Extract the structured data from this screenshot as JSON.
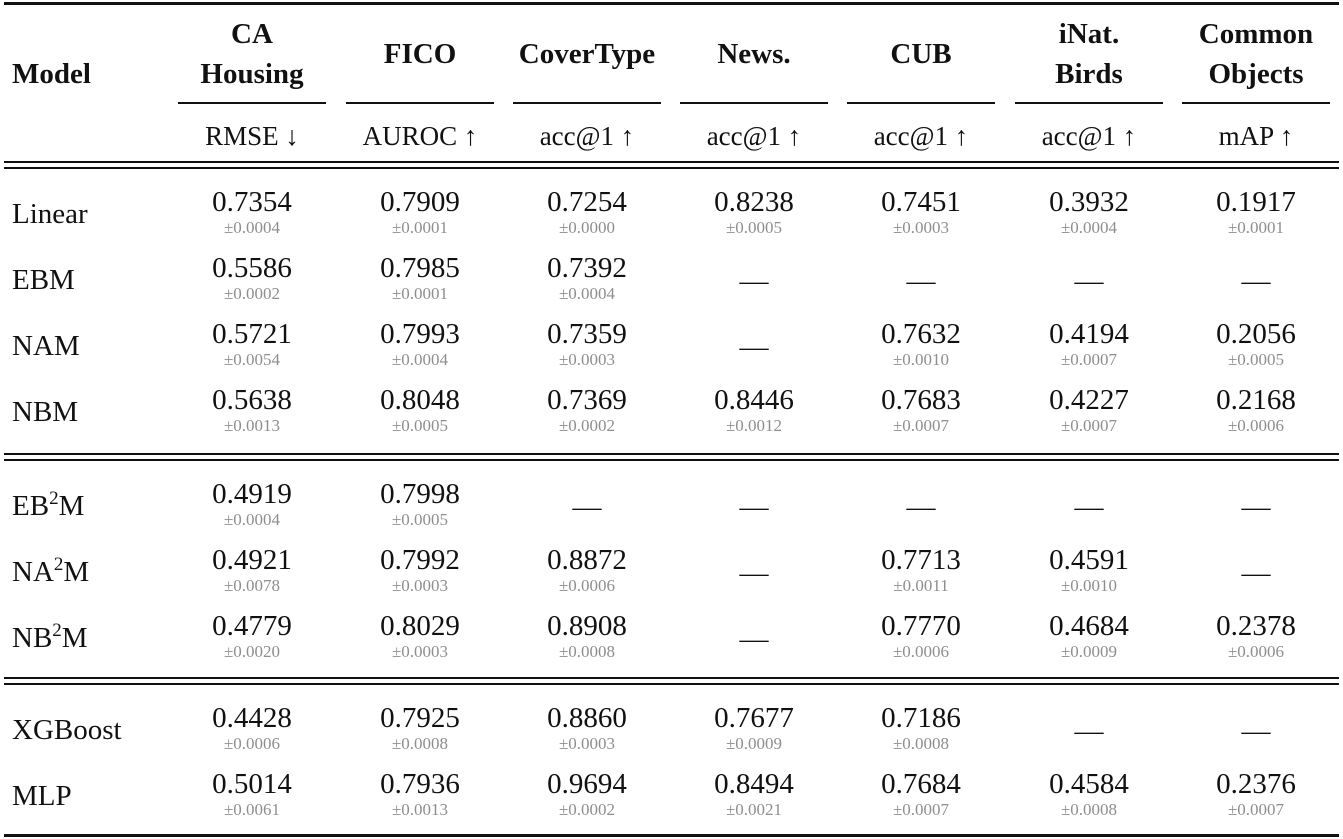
{
  "table": {
    "model_header": "Model",
    "columns": [
      {
        "name_lines": [
          "CA",
          "Housing"
        ],
        "metric": "RMSE ↓"
      },
      {
        "name_lines": [
          "FICO"
        ],
        "metric": "AUROC ↑"
      },
      {
        "name_lines": [
          "CoverType"
        ],
        "metric": "acc@1 ↑"
      },
      {
        "name_lines": [
          "News."
        ],
        "metric": "acc@1 ↑"
      },
      {
        "name_lines": [
          "CUB"
        ],
        "metric": "acc@1 ↑"
      },
      {
        "name_lines": [
          "iNat.",
          "Birds"
        ],
        "metric": "acc@1 ↑"
      },
      {
        "name_lines": [
          "Common",
          "Objects"
        ],
        "metric": "mAP ↑"
      }
    ],
    "groups": [
      {
        "rows": [
          {
            "label": "Linear",
            "cells": [
              {
                "v": "0.7354",
                "s": "±0.0004"
              },
              {
                "v": "0.7909",
                "s": "±0.0001"
              },
              {
                "v": "0.7254",
                "s": "±0.0000"
              },
              {
                "v": "0.8238",
                "s": "±0.0005"
              },
              {
                "v": "0.7451",
                "s": "±0.0003"
              },
              {
                "v": "0.3932",
                "s": "±0.0004"
              },
              {
                "v": "0.1917",
                "s": "±0.0001"
              }
            ]
          },
          {
            "label": "EBM",
            "cells": [
              {
                "v": "0.5586",
                "s": "±0.0002"
              },
              {
                "v": "0.7985",
                "s": "±0.0001"
              },
              {
                "v": "0.7392",
                "s": "±0.0004"
              },
              {
                "v": "—"
              },
              {
                "v": "—"
              },
              {
                "v": "—"
              },
              {
                "v": "—"
              }
            ]
          },
          {
            "label": "NAM",
            "cells": [
              {
                "v": "0.5721",
                "s": "±0.0054"
              },
              {
                "v": "0.7993",
                "s": "±0.0004"
              },
              {
                "v": "0.7359",
                "s": "±0.0003"
              },
              {
                "v": "—"
              },
              {
                "v": "0.7632",
                "s": "±0.0010"
              },
              {
                "v": "0.4194",
                "s": "±0.0007"
              },
              {
                "v": "0.2056",
                "s": "±0.0005"
              }
            ]
          },
          {
            "label": "NBM",
            "cells": [
              {
                "v": "0.5638",
                "s": "±0.0013"
              },
              {
                "v": "0.8048",
                "s": "±0.0005"
              },
              {
                "v": "0.7369",
                "s": "±0.0002"
              },
              {
                "v": "0.8446",
                "s": "±0.0012"
              },
              {
                "v": "0.7683",
                "s": "±0.0007"
              },
              {
                "v": "0.4227",
                "s": "±0.0007"
              },
              {
                "v": "0.2168",
                "s": "±0.0006"
              }
            ]
          }
        ]
      },
      {
        "rows": [
          {
            "label_pre": "EB",
            "label_sup": "2",
            "label_post": "M",
            "cells": [
              {
                "v": "0.4919",
                "s": "±0.0004"
              },
              {
                "v": "0.7998",
                "s": "±0.0005"
              },
              {
                "v": "—"
              },
              {
                "v": "—"
              },
              {
                "v": "—"
              },
              {
                "v": "—"
              },
              {
                "v": "—"
              }
            ]
          },
          {
            "label_pre": "NA",
            "label_sup": "2",
            "label_post": "M",
            "cells": [
              {
                "v": "0.4921",
                "s": "±0.0078"
              },
              {
                "v": "0.7992",
                "s": "±0.0003"
              },
              {
                "v": "0.8872",
                "s": "±0.0006"
              },
              {
                "v": "—"
              },
              {
                "v": "0.7713",
                "s": "±0.0011"
              },
              {
                "v": "0.4591",
                "s": "±0.0010"
              },
              {
                "v": "—"
              }
            ]
          },
          {
            "label_pre": "NB",
            "label_sup": "2",
            "label_post": "M",
            "cells": [
              {
                "v": "0.4779",
                "s": "±0.0020"
              },
              {
                "v": "0.8029",
                "s": "±0.0003"
              },
              {
                "v": "0.8908",
                "s": "±0.0008"
              },
              {
                "v": "—"
              },
              {
                "v": "0.7770",
                "s": "±0.0006"
              },
              {
                "v": "0.4684",
                "s": "±0.0009"
              },
              {
                "v": "0.2378",
                "s": "±0.0006"
              }
            ]
          }
        ]
      },
      {
        "rows": [
          {
            "label": "XGBoost",
            "cells": [
              {
                "v": "0.4428",
                "s": "±0.0006"
              },
              {
                "v": "0.7925",
                "s": "±0.0008"
              },
              {
                "v": "0.8860",
                "s": "±0.0003"
              },
              {
                "v": "0.7677",
                "s": "±0.0009"
              },
              {
                "v": "0.7186",
                "s": "±0.0008"
              },
              {
                "v": "—"
              },
              {
                "v": "—"
              }
            ]
          },
          {
            "label": "MLP",
            "cells": [
              {
                "v": "0.5014",
                "s": "±0.0061"
              },
              {
                "v": "0.7936",
                "s": "±0.0013"
              },
              {
                "v": "0.9694",
                "s": "±0.0002"
              },
              {
                "v": "0.8494",
                "s": "±0.0021"
              },
              {
                "v": "0.7684",
                "s": "±0.0007"
              },
              {
                "v": "0.4584",
                "s": "±0.0008"
              },
              {
                "v": "0.2376",
                "s": "±0.0007"
              }
            ]
          }
        ]
      }
    ]
  }
}
